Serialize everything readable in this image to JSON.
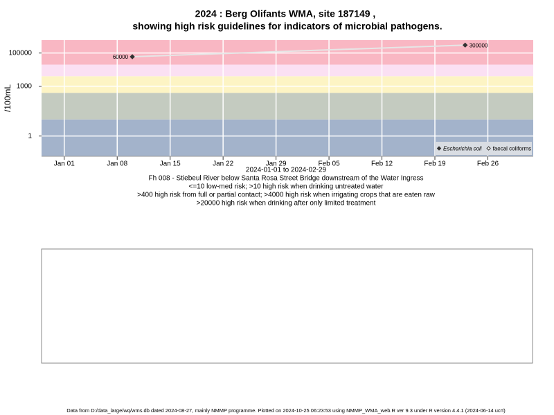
{
  "chart_data": {
    "type": "line",
    "title": "2024 : Berg Olifants WMA, site 187149 ,",
    "subtitle": "showing high risk guidelines for indicators of microbial pathogens.",
    "y_label": "/100mL",
    "x_label": "2024-01-01 to 2024-02-29",
    "notes": [
      "Fh 008 - Stiebeul River below Santa Rosa Street Bridge downstream of the Water Ingress",
      "<=10 low-med risk; >10 high risk when drinking untreated water",
      ">400 high risk from full or partial contact; >4000 high risk when irrigating crops that are eaten raw",
      ">20000 high risk when drinking after only limited treatment"
    ],
    "footer": "Data from D:/data_large/wq/wms.db dated 2024-08-27, mainly NMMP programme. Plotted on 2024-10-25 06:23:53 using NMMP_WMA_web.R ver 9.3 under R version 4.4.1 (2024-06-14 ucrt)",
    "log_y": true,
    "ylim": [
      0.06,
      600000
    ],
    "yticks": [
      1,
      1000,
      100000
    ],
    "xlim": [
      "2023-12-29",
      "2024-03-03"
    ],
    "xticks": [
      {
        "value": "2024-01-01",
        "label": "Jan 01"
      },
      {
        "value": "2024-01-08",
        "label": "Jan 08"
      },
      {
        "value": "2024-01-15",
        "label": "Jan 15"
      },
      {
        "value": "2024-01-22",
        "label": "Jan 22"
      },
      {
        "value": "2024-01-29",
        "label": "Jan 29"
      },
      {
        "value": "2024-02-05",
        "label": "Feb 05"
      },
      {
        "value": "2024-02-12",
        "label": "Feb 12"
      },
      {
        "value": "2024-02-19",
        "label": "Feb 19"
      },
      {
        "value": "2024-02-26",
        "label": "Feb 26"
      }
    ],
    "grid": true,
    "band_thresholds": [
      10,
      400,
      4000,
      20000
    ],
    "band_colors": [
      "#a3b3cb",
      "#c4cbc0",
      "#fdf4c4",
      "#fbe0f3",
      "#f9b7c3"
    ],
    "legend_position": "bottom-right",
    "series": [
      {
        "name": "Escherichia coli",
        "color": "#333333",
        "line_color": "#e6e6e6",
        "filled": true,
        "x": [
          "2024-01-10",
          "2024-02-23"
        ],
        "values": [
          60000,
          300000
        ]
      },
      {
        "name": "faecal coliforms",
        "color": "#333333",
        "line_color": "#e6e6e6",
        "filled": false,
        "x": [],
        "values": []
      }
    ]
  }
}
